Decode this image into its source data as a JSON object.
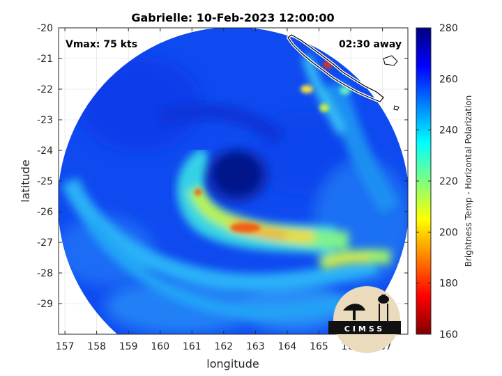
{
  "chart_data": {
    "type": "heatmap",
    "title": "Gabrielle: 10-Feb-2023 12:00:00",
    "xlabel": "longitude",
    "ylabel": "latitude",
    "xlim": [
      156.8,
      167.8
    ],
    "ylim": [
      -30.0,
      -20.0
    ],
    "yaxis_direction": "reversed",
    "x_ticks": [
      "157",
      "158",
      "159",
      "160",
      "161",
      "162",
      "163",
      "164",
      "165",
      "166",
      "167"
    ],
    "y_ticks": [
      "-20",
      "-21",
      "-22",
      "-23",
      "-24",
      "-25",
      "-26",
      "-27",
      "-28",
      "-29"
    ],
    "grid": true,
    "annotations": {
      "vmax": "Vmax: 75 kts",
      "time_offset": "02:30 away"
    },
    "storm_center": {
      "lon": 162.5,
      "lat": -24.9
    },
    "swath_center": {
      "lon": 162.3,
      "lat": -25.6
    },
    "colorbar": {
      "label": "Brightness Temp - Horizontal Polarization",
      "min": 160,
      "max": 280,
      "ticks": [
        "280",
        "260",
        "240",
        "220",
        "200",
        "180",
        "160"
      ],
      "colormap": "jet"
    },
    "features": [
      {
        "name": "eye",
        "lon": 162.5,
        "lat": -24.9,
        "value": 272
      },
      {
        "name": "main-rainband",
        "lon": 163.2,
        "lat": -26.6,
        "value": 195
      },
      {
        "name": "rainband-hook",
        "lon": 161.2,
        "lat": -25.4,
        "value": 200
      },
      {
        "name": "southeast-band",
        "lon": 166.0,
        "lat": -27.6,
        "value": 212
      },
      {
        "name": "coastal-hotspot",
        "lon": 165.2,
        "lat": -21.2,
        "value": 185
      }
    ],
    "logo_text": "CIMSS"
  },
  "colors": {
    "frame": "#262626",
    "grid": "#dcdcdc",
    "coastline_outer": "#ffffff",
    "coastline_inner": "#000000"
  }
}
